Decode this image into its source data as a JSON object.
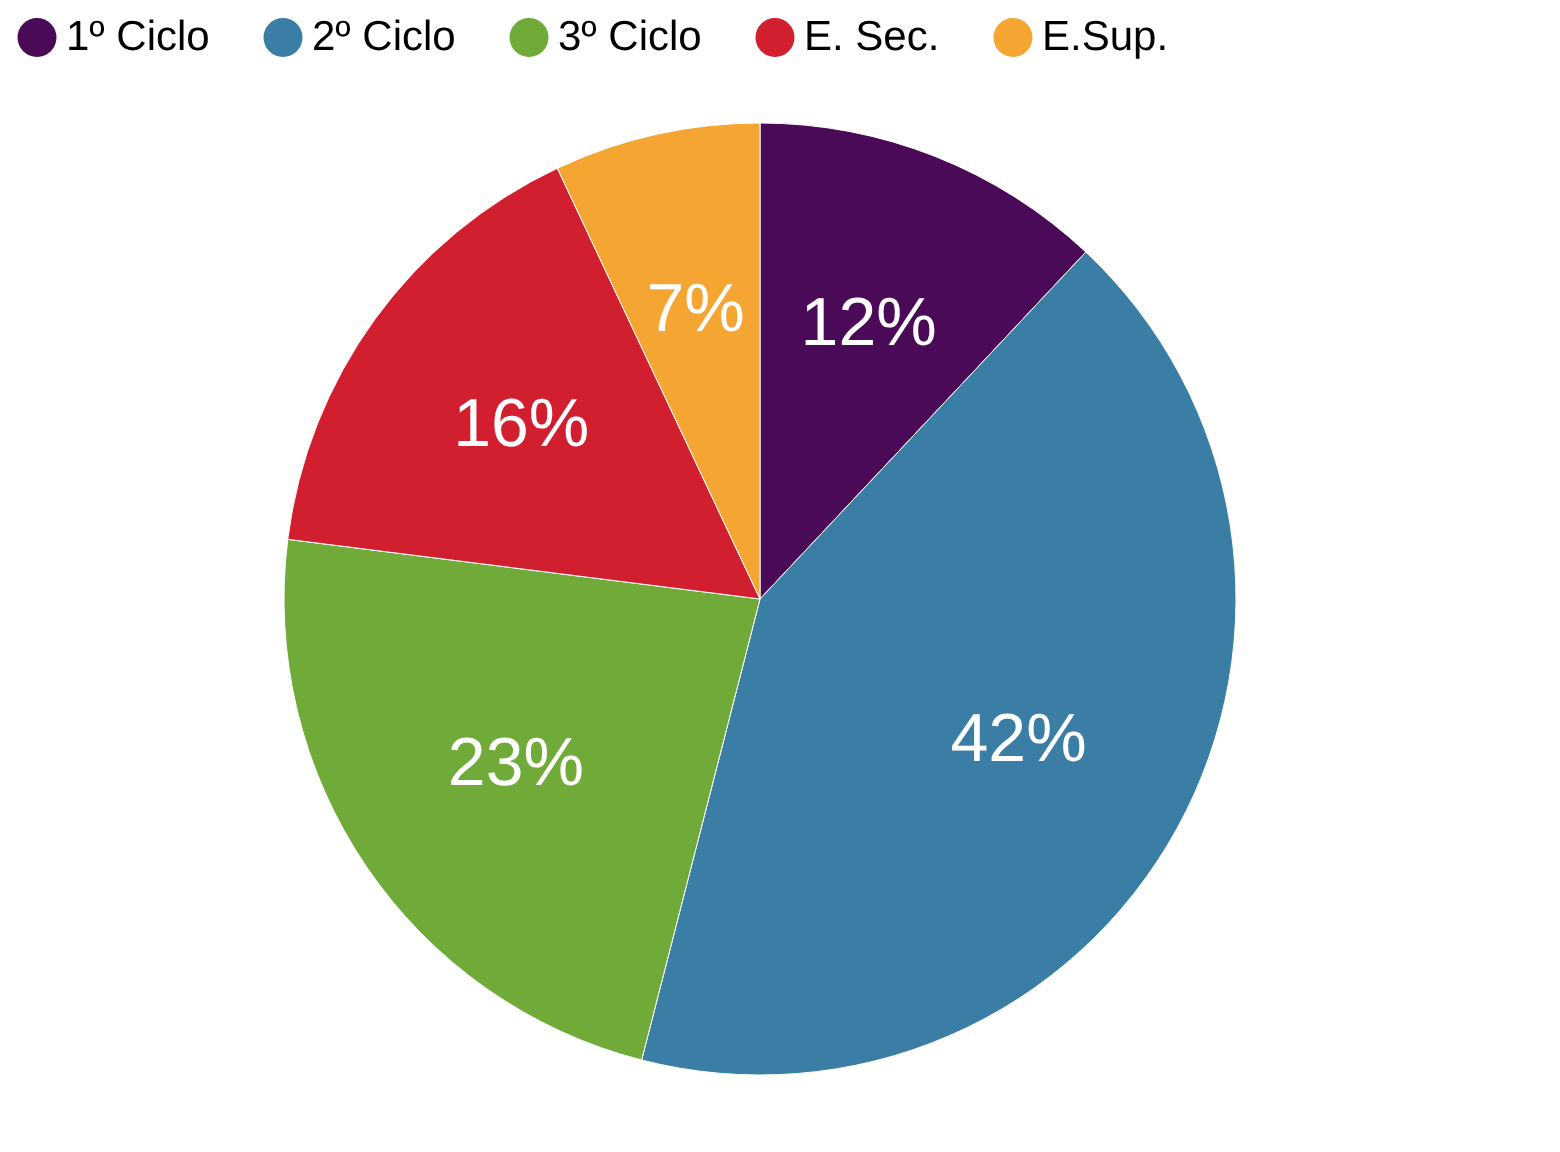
{
  "chart_data": {
    "type": "pie",
    "categories": [
      "1º Ciclo",
      "2º Ciclo",
      "3º Ciclo",
      "E. Sec.",
      "E.Sup."
    ],
    "values": [
      12,
      42,
      23,
      16,
      7
    ],
    "colors": [
      "#4b0a57",
      "#3a7ea6",
      "#70aa38",
      "#d21f30",
      "#f5a531"
    ],
    "value_labels": [
      "12%",
      "42%",
      "23%",
      "16%",
      "7%"
    ],
    "legend": "top"
  }
}
